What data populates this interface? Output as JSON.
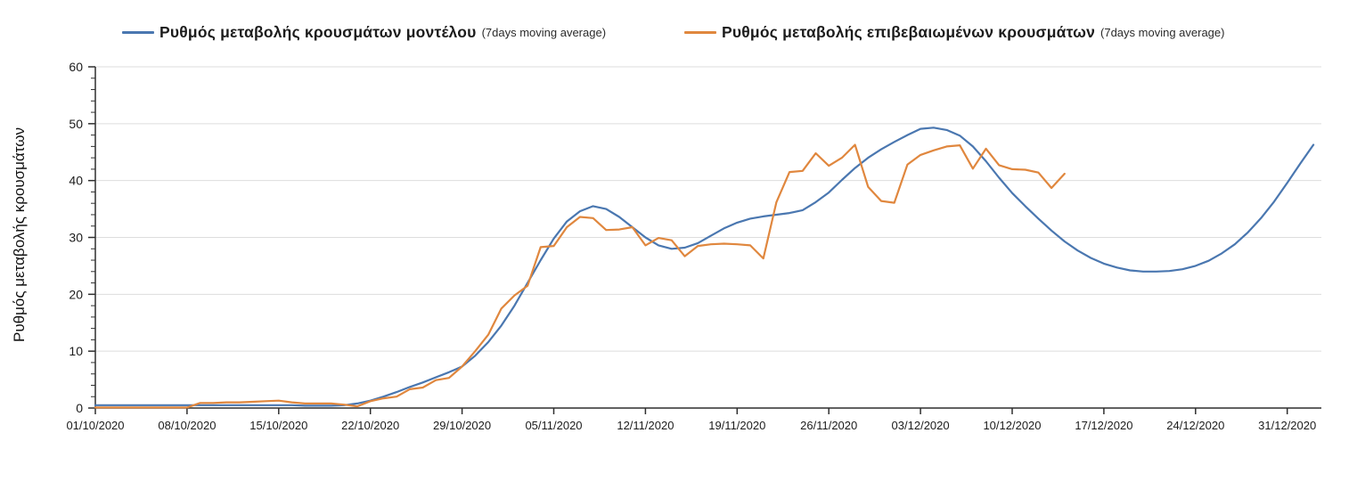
{
  "legend": {
    "items": [
      {
        "label": "Ρυθμός μεταβολής κρουσμάτων μοντέλου",
        "sublabel": "(7days moving average)"
      },
      {
        "label": "Ρυθμός μεταβολής επιβεβαιωμένων κρουσμάτων",
        "sublabel": "(7days moving average)"
      }
    ]
  },
  "y_axis_title": "Ρυθμός μεταβολής κρουσμάτων",
  "colors": {
    "model_line": "#4a77b0",
    "confirmed_line": "#e0873e",
    "grid": "#dddddd",
    "axis": "#2f2f2f",
    "text": "#1c1c1c"
  },
  "chart_data": {
    "type": "line",
    "title": "",
    "ylabel": "Ρυθμός μεταβολής κρουσμάτων",
    "xlabel": "",
    "x_unit": "days since 01/10/2020 (daily points)",
    "ylim": [
      0,
      60
    ],
    "y_ticks": [
      0,
      10,
      20,
      30,
      40,
      50,
      60
    ],
    "y_minor_tick_step": 2,
    "grid": true,
    "legend_position": "top",
    "x_ticks": [
      {
        "day": 0,
        "label": "01/10/2020"
      },
      {
        "day": 7,
        "label": "08/10/2020"
      },
      {
        "day": 14,
        "label": "15/10/2020"
      },
      {
        "day": 21,
        "label": "22/10/2020"
      },
      {
        "day": 28,
        "label": "29/10/2020"
      },
      {
        "day": 35,
        "label": "05/11/2020"
      },
      {
        "day": 42,
        "label": "12/11/2020"
      },
      {
        "day": 49,
        "label": "19/11/2020"
      },
      {
        "day": 56,
        "label": "26/11/2020"
      },
      {
        "day": 63,
        "label": "03/12/2020"
      },
      {
        "day": 70,
        "label": "10/12/2020"
      },
      {
        "day": 77,
        "label": "17/12/2020"
      },
      {
        "day": 84,
        "label": "24/12/2020"
      },
      {
        "day": 91,
        "label": "31/12/2020"
      }
    ],
    "series": [
      {
        "id": "model",
        "name": "Ρυθμός μεταβολής κρουσμάτων μοντέλου (7days moving average)",
        "color": "#4a77b0",
        "start_day": 0,
        "values": [
          0.5,
          0.5,
          0.5,
          0.5,
          0.5,
          0.5,
          0.5,
          0.5,
          0.5,
          0.5,
          0.5,
          0.5,
          0.5,
          0.5,
          0.5,
          0.5,
          0.4,
          0.4,
          0.4,
          0.5,
          0.8,
          1.3,
          2.0,
          2.8,
          3.7,
          4.5,
          5.4,
          6.3,
          7.3,
          9.2,
          11.6,
          14.5,
          18.0,
          22.0,
          26.0,
          29.8,
          32.8,
          34.6,
          35.5,
          35.0,
          33.6,
          31.8,
          30.0,
          28.6,
          28.0,
          28.2,
          29.0,
          30.3,
          31.6,
          32.6,
          33.3,
          33.7,
          34.0,
          34.3,
          34.8,
          36.2,
          37.9,
          40.1,
          42.2,
          44.0,
          45.5,
          46.8,
          48.0,
          49.1,
          49.3,
          48.9,
          47.9,
          46.0,
          43.4,
          40.5,
          37.8,
          35.5,
          33.3,
          31.2,
          29.3,
          27.7,
          26.4,
          25.4,
          24.7,
          24.2,
          24.0,
          24.0,
          24.1,
          24.4,
          25.0,
          25.9,
          27.2,
          28.8,
          30.9,
          33.4,
          36.3,
          39.6,
          43.0,
          46.3
        ]
      },
      {
        "id": "confirmed",
        "name": "Ρυθμός μεταβολής επιβεβαιωμένων κρουσμάτων (7days moving average)",
        "color": "#e0873e",
        "start_day": 0,
        "values": [
          0.1,
          0.1,
          0.1,
          0.1,
          0.1,
          0.1,
          0.1,
          0.1,
          0.9,
          0.9,
          1.0,
          1.0,
          1.1,
          1.2,
          1.3,
          1.0,
          0.8,
          0.8,
          0.8,
          0.6,
          0.3,
          1.2,
          1.7,
          2.0,
          3.3,
          3.6,
          4.9,
          5.3,
          7.3,
          10.0,
          12.9,
          17.5,
          19.8,
          21.5,
          28.3,
          28.5,
          31.8,
          33.6,
          33.4,
          31.3,
          31.4,
          31.8,
          28.6,
          29.9,
          29.5,
          26.7,
          28.5,
          28.8,
          28.9,
          28.8,
          28.6,
          26.3,
          36.2,
          41.5,
          41.7,
          44.8,
          42.6,
          44.0,
          46.3,
          38.9,
          36.4,
          36.1,
          42.8,
          44.5,
          45.3,
          46.0,
          46.2,
          42.1,
          45.6,
          42.7,
          42.0,
          41.9,
          41.4,
          38.7,
          41.2
        ]
      }
    ]
  }
}
